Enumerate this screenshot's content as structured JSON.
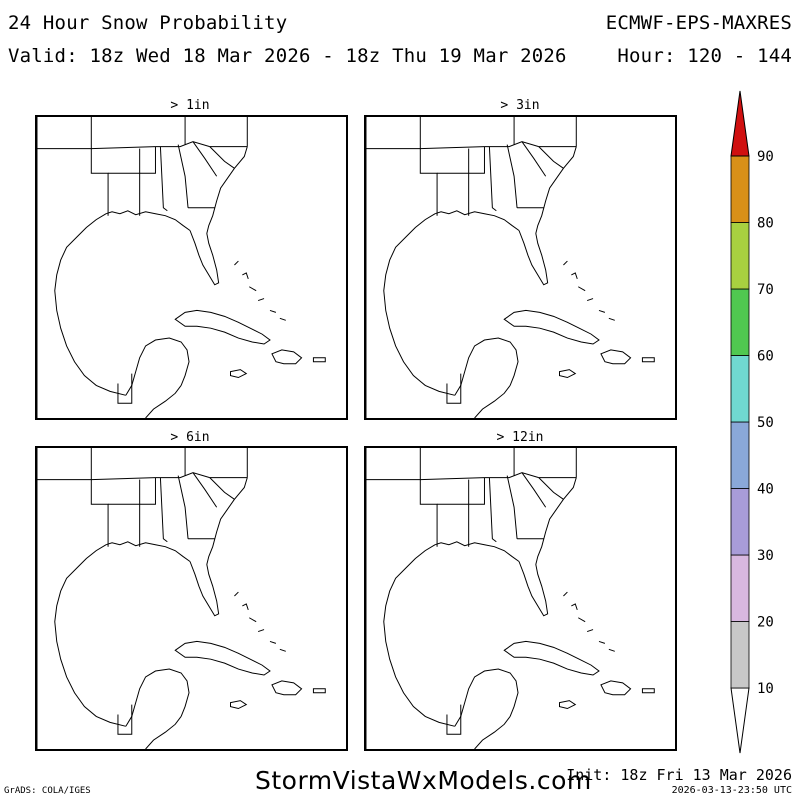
{
  "header": {
    "title": "24 Hour Snow Probability",
    "model": "ECMWF-EPS-MAXRES",
    "valid": "Valid: 18z Wed 18 Mar 2026 - 18z Thu 19 Mar 2026",
    "hour": "Hour: 120 - 144"
  },
  "panels": [
    {
      "label": "> 1in"
    },
    {
      "label": "> 3in"
    },
    {
      "label": "> 6in"
    },
    {
      "label": "> 12in"
    }
  ],
  "colorbar": {
    "ticks": [
      "10",
      "20",
      "30",
      "40",
      "50",
      "60",
      "70",
      "80",
      "90"
    ],
    "colors": [
      "#c8c8c8",
      "#d8b8e0",
      "#a89cd8",
      "#8aa8d8",
      "#70d8d0",
      "#50c850",
      "#a8d040",
      "#d89018",
      "#d01010"
    ]
  },
  "footer": {
    "site": "StormVistaWxModels.com",
    "init": "Init: 18z Fri 13 Mar 2026",
    "timestamp": "2026-03-13-23:50 UTC",
    "grads": "GrADS: COLA/IGES"
  }
}
